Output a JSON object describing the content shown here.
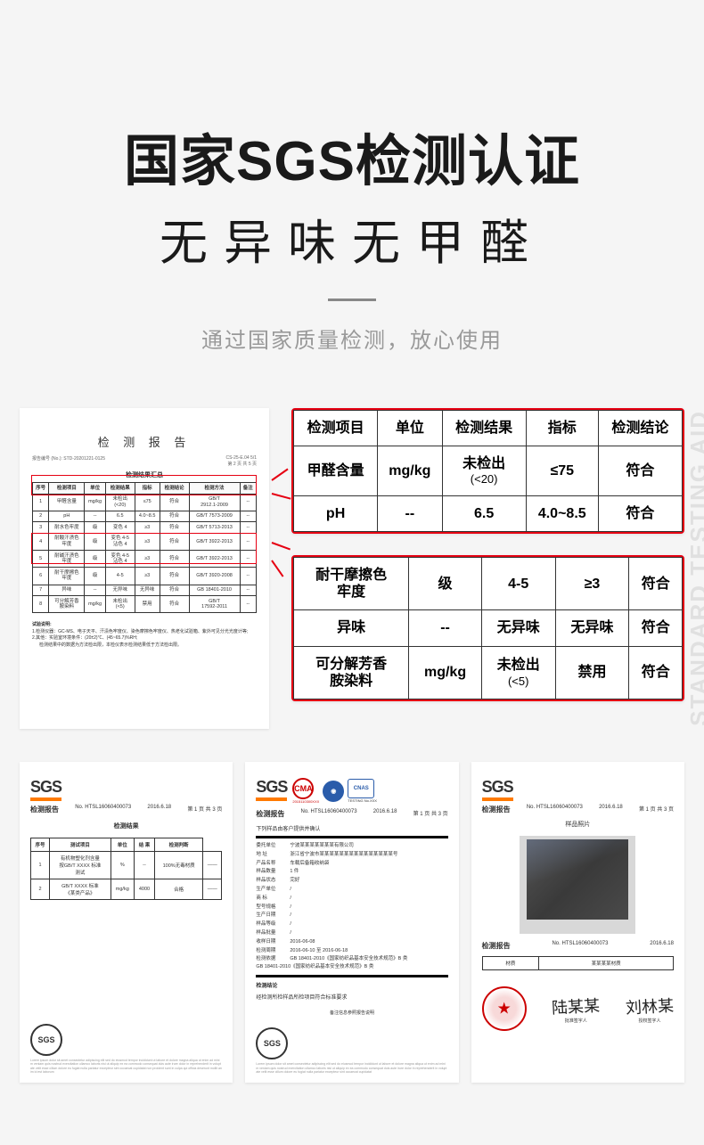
{
  "header": {
    "title": "国家SGS检测认证",
    "subtitle": "无异味无甲醛",
    "caption": "通过国家质量检测，放心使用"
  },
  "report": {
    "title": "检 测 报 告",
    "meta_left": "报告编号 (No.): STD-20201221-0125",
    "meta_right_1": "CS-25-E.04    5/1",
    "meta_right_2": "第 2 页 共 5 页",
    "subtitle": "检测结果汇总",
    "columns": [
      "序号",
      "检测项目",
      "单位",
      "检测结果",
      "指标",
      "检测结论",
      "检测方法",
      "备注"
    ],
    "rows": [
      [
        "1",
        "甲醛含量",
        "mg/kg",
        "未检出\n(<20)",
        "≤75",
        "符合",
        "GB/T\n2912.1-2009",
        "--"
      ],
      [
        "2",
        "pH",
        "--",
        "6.5",
        "4.0~8.5",
        "符合",
        "GB/T 7573-2009",
        "--"
      ],
      [
        "3",
        "耐水色牢度",
        "级",
        "变色 4",
        "≥3",
        "符合",
        "GB/T 5713-2013",
        "--"
      ],
      [
        "4",
        "耐酸汗渍色\n牢度",
        "级",
        "变色 4-5\n沾色 4",
        "≥3",
        "符合",
        "GB/T 3922-2013",
        "--"
      ],
      [
        "5",
        "耐碱汗渍色\n牢度",
        "级",
        "变色 4-5\n沾色 4",
        "≥3",
        "符合",
        "GB/T 3922-2013",
        "--"
      ],
      [
        "6",
        "耐干摩擦色\n牢度",
        "级",
        "4-5",
        "≥3",
        "符合",
        "GB/T 3920-2008",
        "--"
      ],
      [
        "7",
        "异味",
        "--",
        "无异味",
        "无异味",
        "符合",
        "GB 18401-2010",
        "--"
      ],
      [
        "8",
        "可分解芳香\n胺染料",
        "mg/kg",
        "未检出\n(<5)",
        "禁用",
        "符合",
        "GB/T\n17592-2011",
        "--"
      ]
    ],
    "note_label1": "试验说明:",
    "note_list_1": "1.检测仪器：GC-MS、电子天平、汗渍色牢度仪、染色摩擦色牢度仪、热老化试验箱、紫外可见分光光度计等;",
    "note_list_2": "2.其他：实验室环境条件：(20±2)℃、(45~65.7)%RH;",
    "note_list_3": "检测结果中的数据为方法检出限，本检仪表示检测结果低于方法检出限。"
  },
  "callout1": {
    "headers": [
      "检测项目",
      "单位",
      "检测结果",
      "指标",
      "检测结论"
    ],
    "rows": [
      {
        "item": "甲醛含量",
        "unit": "mg/kg",
        "result": "未检出",
        "result_sub": "(<20)",
        "spec": "≤75",
        "conclusion": "符合"
      },
      {
        "item": "pH",
        "unit": "--",
        "result": "6.5",
        "result_sub": "",
        "spec": "4.0~8.5",
        "conclusion": "符合"
      }
    ]
  },
  "callout2": {
    "rows": [
      {
        "item": "耐干摩擦色\n牢度",
        "unit": "级",
        "result": "4-5",
        "result_sub": "",
        "spec": "≥3",
        "conclusion": "符合"
      },
      {
        "item": "异味",
        "unit": "--",
        "result": "无异味",
        "result_sub": "",
        "spec": "无异味",
        "conclusion": "符合"
      },
      {
        "item": "可分解芳香\n胺染料",
        "unit": "mg/kg",
        "result": "未检出",
        "result_sub": "(<5)",
        "spec": "禁用",
        "conclusion": "符合"
      }
    ]
  },
  "watermark": "STANDARD TESTING AID",
  "sgs": {
    "logo": "SGS",
    "report_label": "检测报告",
    "doc_no": "No.  HTSL16060400073",
    "date": "2016.6.18",
    "page": "第 1 页 共 3 页",
    "doc1": {
      "subtitle": "检测结果",
      "cols": [
        "序号",
        "测试项目",
        "单位",
        "结 果",
        "检测判断"
      ],
      "rows": [
        [
          "1",
          "有机物塑化剂含量\n按GB/T XXXX 标准\n测试",
          "%",
          "--",
          "100%无毒材质",
          "——"
        ],
        [
          "2",
          "GB/T XXXX 标准\n《某类产品》",
          "mg/kg",
          "4000",
          "合格",
          "——"
        ]
      ]
    },
    "doc2": {
      "cma": "CMA",
      "cma_no": "2015110300XXX",
      "cnas": "CNAS",
      "testing": "TESTING\nNo.XXX",
      "subtitle": "下列样品由客户提供并确认",
      "kv": [
        [
          "委托单位",
          "宁波某某某某某某某有限公司"
        ],
        [
          "地    址",
          "浙江省宁波市某某某某某某某某某某某某某某某号"
        ],
        [
          "产品名称",
          "车载后备箱收纳袋"
        ],
        [
          "样品数量",
          "1 件"
        ],
        [
          "样品状态",
          "完好"
        ],
        [
          "生产单位",
          "/"
        ],
        [
          "商    标",
          "/"
        ],
        [
          "型号规格",
          "/"
        ],
        [
          "生产日期",
          "/"
        ],
        [
          "样品等级",
          "/"
        ],
        [
          "样品批量",
          "/"
        ],
        [
          "收样日期",
          "2016-06-08"
        ],
        [
          "检测周期",
          "2016-06-10 至 2016-06-18"
        ]
      ],
      "basis": "GB 18401-2010《国家纺织品基本安全技术规范》B 类\nGB 18401-2010《国家纺织品基本安全技术规范》B 类",
      "conclusion_label": "检测结论",
      "conclusion": "经检测所检样品所检项目符合标准要求",
      "remark_label": "备注信息参照报告说明"
    },
    "doc3": {
      "subtitle": "样品照片",
      "table_cols": [
        "",
        "描述"
      ],
      "table_rows": [
        [
          "材质",
          "某某某某材质"
        ]
      ],
      "sig_label_1": "批准签字人",
      "sig_label_2": "授权签字人",
      "sig1": "陆某某",
      "sig2": "刘林某"
    }
  }
}
